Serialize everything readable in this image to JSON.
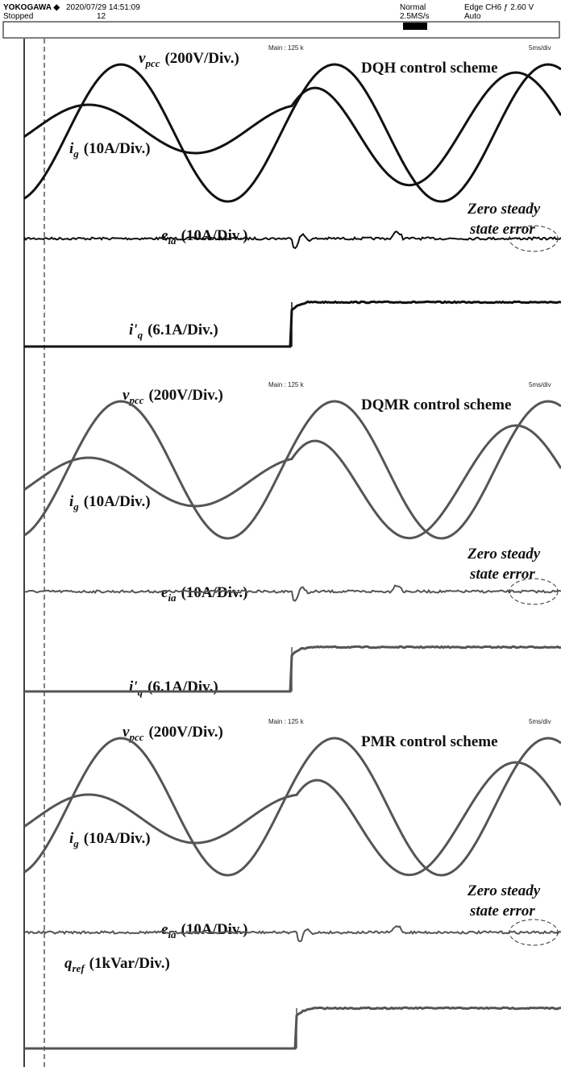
{
  "header": {
    "brand": "YOKOGAWA ◆",
    "datetime": "2020/07/29 14:51:09",
    "status": "Stopped",
    "record": "12",
    "mode": "Normal",
    "rate": "2.5MS/s",
    "trigger": "Edge CH6 ƒ 2.60 V",
    "trigger_mode": "Auto"
  },
  "panels": [
    {
      "vpcc": {
        "symbol": "v",
        "sub": "pcc",
        "scale": "(200V/Div.)"
      },
      "zoom": "Main : 125 k",
      "scheme": "DQH control scheme",
      "timebase": "5ms/div",
      "ig": {
        "symbol": "i",
        "sub": "g",
        "scale": "(10A/Div.)"
      },
      "note": [
        "Zero steady",
        "state error"
      ],
      "eia": {
        "symbol": "e",
        "sub": "ia",
        "scale": "(10A/Div.)"
      },
      "ref": {
        "symbol": "i'",
        "sub": "q",
        "scale": "(6.1A/Div.)"
      }
    },
    {
      "vpcc": {
        "symbol": "v",
        "sub": "pcc",
        "scale": "(200V/Div.)"
      },
      "zoom": "Main : 125 k",
      "scheme": "DQMR control scheme",
      "timebase": "5ms/div",
      "ig": {
        "symbol": "i",
        "sub": "g",
        "scale": "(10A/Div.)"
      },
      "note": [
        "Zero steady",
        "state error"
      ],
      "eia": {
        "symbol": "e",
        "sub": "ia",
        "scale": "(10A/Div.)"
      },
      "ref": {
        "symbol": "i'",
        "sub": "q",
        "scale": "(6.1A/Div.)"
      }
    },
    {
      "vpcc": {
        "symbol": "v",
        "sub": "pcc",
        "scale": "(200V/Div.)"
      },
      "zoom": "Main : 125 k",
      "scheme": "PMR control scheme",
      "timebase": "5ms/div",
      "ig": {
        "symbol": "i",
        "sub": "g",
        "scale": "(10A/Div.)"
      },
      "note": [
        "Zero steady",
        "state error"
      ],
      "eia": {
        "symbol": "e",
        "sub": "ia",
        "scale": "(10A/Div.)"
      },
      "ref": {
        "symbol": "q",
        "sub": "ref",
        "scale": "(1kVar/Div.)"
      }
    }
  ]
}
